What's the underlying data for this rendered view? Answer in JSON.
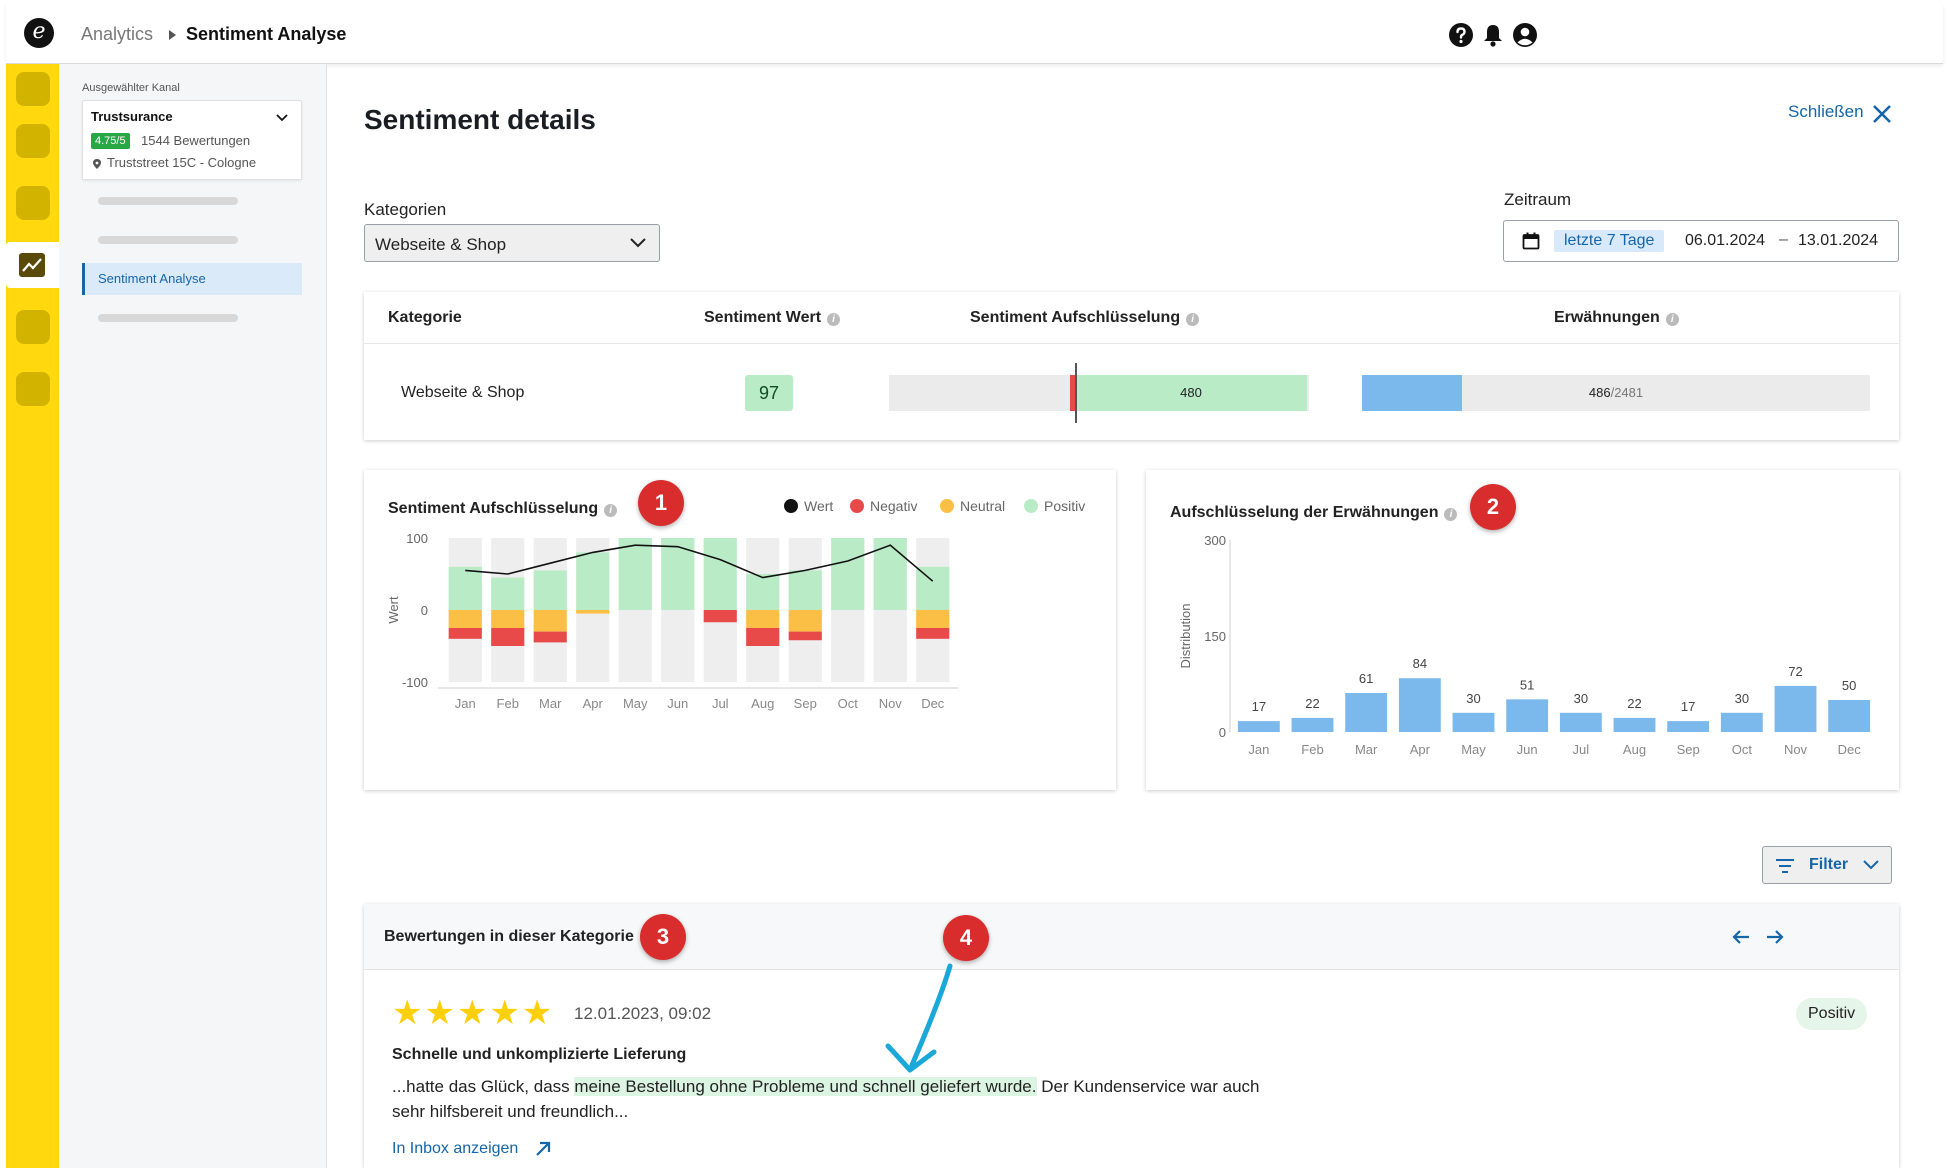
{
  "app": {
    "logo_letter": "e",
    "breadcrumb": {
      "parent": "Analytics",
      "current": "Sentiment Analyse"
    },
    "top_icons": [
      "help-icon",
      "bell-icon",
      "account-icon"
    ]
  },
  "sidebar": {
    "channel_label": "Ausgewählter Kanal",
    "channel": {
      "name": "Trustsurance",
      "rating": "4.75/5",
      "reviews": "1544 Bewertungen",
      "address": "Truststreet 15C - Cologne"
    },
    "active_item": "Sentiment Analyse"
  },
  "main": {
    "title": "Sentiment details",
    "close_label": "Schließen",
    "filters": {
      "category_label": "Kategorien",
      "category_value": "Webseite & Shop",
      "period_label": "Zeitraum",
      "period_chip": "letzte 7 Tage",
      "date_from": "06.01.2024",
      "date_sep": "–",
      "date_to": "13.01.2024"
    },
    "summary_table": {
      "headers": {
        "category": "Kategorie",
        "score": "Sentiment Wert",
        "breakdown": "Sentiment Aufschlüsselung",
        "mentions": "Erwähnungen"
      },
      "row": {
        "category": "Webseite & Shop",
        "score": "97",
        "positive_count": "480",
        "mentions": "486",
        "mentions_total": "/2481",
        "mentions_fraction": 0.196
      }
    },
    "markers": [
      "1",
      "2",
      "3",
      "4"
    ],
    "filter_button": "Filter",
    "reviews": {
      "title": "Bewertungen in dieser Kategorie",
      "item": {
        "stars": 5,
        "date": "12.01.2023, 09:02",
        "sentiment": "Positiv",
        "headline": "Schnelle und unkomplizierte Lieferung",
        "text_before": "...hatte das Glück, dass ",
        "text_highlight": "meine Bestellung ohne Probleme und schnell geliefert wurde.",
        "text_after": " Der Kundenservice war auch sehr hilfsbereit und freundlich...",
        "link": "In Inbox anzeigen"
      }
    }
  },
  "colors": {
    "accent": "#1565a8",
    "rail": "#ffd90d",
    "positive": "#b9ecc6",
    "neutral": "#fbbf45",
    "negative": "#e84a4a",
    "value_line": "#111111",
    "mentions_bar": "#7bb8ec",
    "marker": "#d92d2d"
  },
  "chart_data": [
    {
      "type": "bar",
      "title": "Sentiment Aufschlüsselung",
      "ylabel": "Wert",
      "ylim": [
        -100,
        100
      ],
      "yticks": [
        100,
        0,
        -100
      ],
      "categories": [
        "Jan",
        "Feb",
        "Mar",
        "Apr",
        "May",
        "Jun",
        "Jul",
        "Aug",
        "Sep",
        "Oct",
        "Nov",
        "Dec"
      ],
      "legend": [
        "Wert",
        "Negativ",
        "Neutral",
        "Positiv"
      ],
      "legend_placement": "top-right",
      "series": [
        {
          "name": "Positiv",
          "values": [
            60,
            45,
            55,
            80,
            100,
            100,
            100,
            50,
            55,
            100,
            100,
            60
          ]
        },
        {
          "name": "Neutral",
          "values": [
            -25,
            -25,
            -30,
            -5,
            0,
            0,
            0,
            -25,
            -30,
            0,
            0,
            -25
          ]
        },
        {
          "name": "Negativ",
          "values": [
            -15,
            -25,
            -15,
            0,
            0,
            0,
            -17,
            -25,
            -12,
            0,
            0,
            -15
          ]
        },
        {
          "name": "Wert",
          "values": [
            55,
            50,
            65,
            80,
            90,
            88,
            70,
            45,
            55,
            68,
            90,
            40
          ]
        }
      ]
    },
    {
      "type": "bar",
      "title": "Aufschlüsselung der Erwähnungen",
      "ylabel": "Distribution",
      "ylim": [
        0,
        300
      ],
      "yticks": [
        300,
        150,
        0
      ],
      "categories": [
        "Jan",
        "Feb",
        "Mar",
        "Apr",
        "May",
        "Jun",
        "Jul",
        "Aug",
        "Sep",
        "Oct",
        "Nov",
        "Dec"
      ],
      "values": [
        17,
        22,
        61,
        84,
        30,
        51,
        30,
        22,
        17,
        30,
        72,
        50
      ]
    }
  ]
}
